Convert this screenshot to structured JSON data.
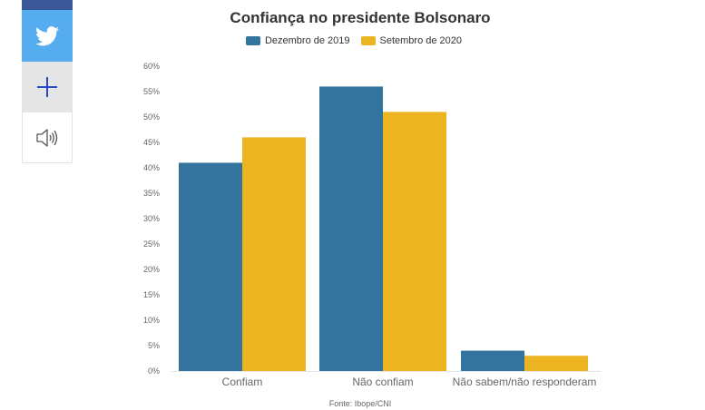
{
  "share": {
    "icons": [
      "facebook-icon",
      "twitter-icon",
      "plus-icon",
      "speaker-icon"
    ],
    "colors": {
      "facebook": "#3b5998",
      "twitter": "#55acee",
      "plus": "#2a46c7"
    }
  },
  "chart_data": {
    "type": "bar",
    "title": "Confiança no presidente Bolsonaro",
    "categories": [
      "Confiam",
      "Não confiam",
      "Não sabem/não responderam"
    ],
    "series": [
      {
        "name": "Dezembro de 2019",
        "color": "#33749f",
        "values": [
          41,
          56,
          4
        ]
      },
      {
        "name": "Setembro de 2020",
        "color": "#ecb421",
        "values": [
          46,
          51,
          3
        ]
      }
    ],
    "ylim": [
      0,
      60
    ],
    "yticks": [
      "0%",
      "5%",
      "10%",
      "15%",
      "20%",
      "25%",
      "30%",
      "35%",
      "40%",
      "45%",
      "50%",
      "55%",
      "60%"
    ],
    "xlabel": "",
    "ylabel": "",
    "legend_position": "top-center",
    "grid": false,
    "source": "Fonte: Ibope/CNI"
  }
}
